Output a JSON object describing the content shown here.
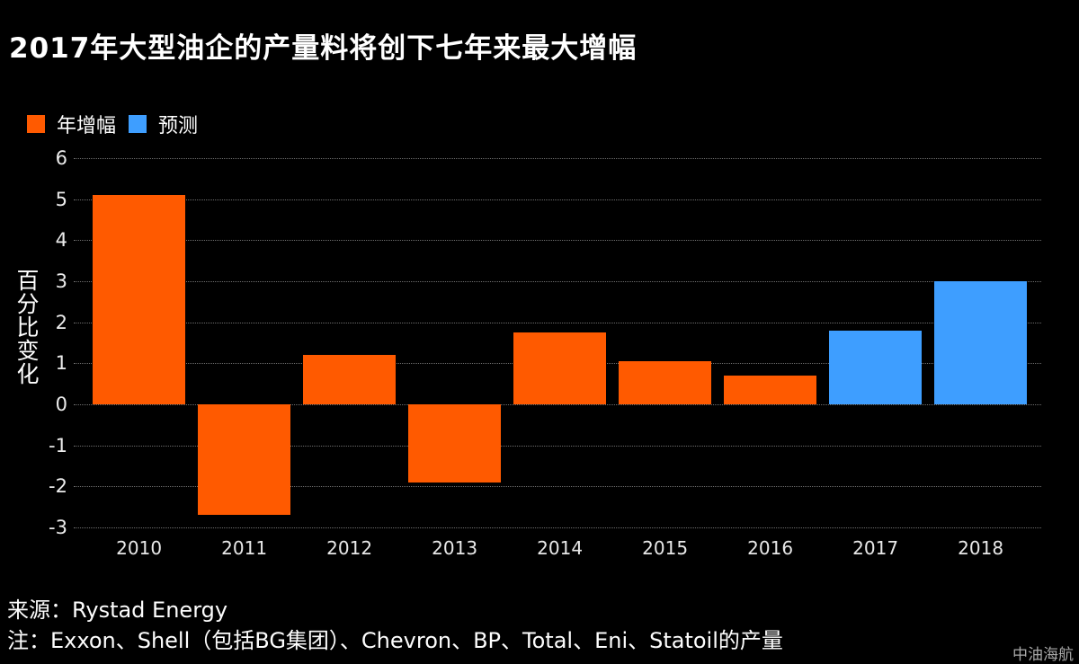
{
  "title": "2017年大型油企的产量料将创下七年来最大增幅",
  "legend": {
    "items": [
      {
        "label": "年增幅",
        "color": "#ff5a00"
      },
      {
        "label": "预测",
        "color": "#3e9eff"
      }
    ]
  },
  "chart_data": {
    "type": "bar",
    "title": "2017年大型油企的产量料将创下七年来最大增幅",
    "categories": [
      "2010",
      "2011",
      "2012",
      "2013",
      "2014",
      "2015",
      "2016",
      "2017",
      "2018"
    ],
    "values": [
      5.1,
      -2.7,
      1.2,
      -1.9,
      1.75,
      1.05,
      0.7,
      1.8,
      3.0
    ],
    "colors": [
      "#ff5a00",
      "#ff5a00",
      "#ff5a00",
      "#ff5a00",
      "#ff5a00",
      "#ff5a00",
      "#ff5a00",
      "#3e9eff",
      "#3e9eff"
    ],
    "forecast_categories": [
      "2017",
      "2018"
    ],
    "series_names": {
      "actual": "年增幅",
      "forecast": "预测"
    },
    "xlabel": "",
    "ylabel": "百分比变化",
    "yticks": [
      6,
      5,
      4,
      3,
      2,
      1,
      0,
      -1,
      -2,
      -3
    ],
    "ylim": [
      -3,
      6
    ],
    "grid": "horizontal-dotted",
    "legend_position": "top-left",
    "background_color": "#000000",
    "actual_color": "#ff5a00",
    "forecast_color": "#3e9eff"
  },
  "footer": {
    "source": "来源：Rystad Energy",
    "note": "注：Exxon、Shell（包括BG集团）、Chevron、BP、Total、Eni、Statoil的产量"
  },
  "watermark": "中油海航"
}
